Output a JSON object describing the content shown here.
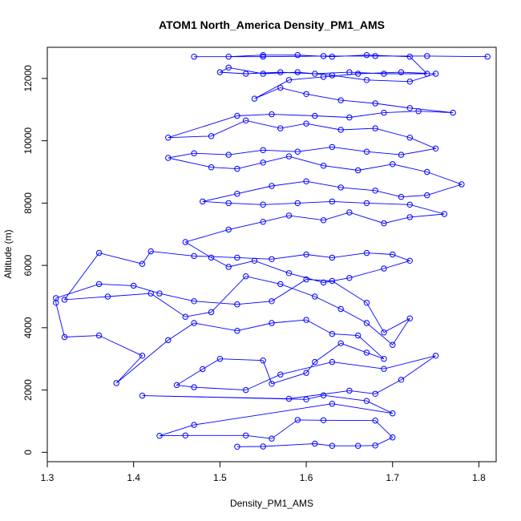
{
  "chart_data": {
    "type": "line",
    "title": "ATOM1 North_America Density_PM1_AMS",
    "xlabel": "Density_PM1_AMS",
    "ylabel": "Altitude (m)",
    "xlim": [
      1.3,
      1.82
    ],
    "ylim": [
      -300,
      13000
    ],
    "xticks": [
      "1.3",
      "1.4",
      "1.5",
      "1.6",
      "1.7",
      "1.8"
    ],
    "yticks": [
      "0",
      "2000",
      "4000",
      "6000",
      "8000",
      "10000",
      "12000"
    ],
    "markers": "open-circle",
    "colors": {
      "series": "#0000ff",
      "axis": "#000000"
    },
    "series": [
      {
        "values": [
          [
            1.52,
            180
          ],
          [
            1.55,
            190
          ],
          [
            1.61,
            280
          ],
          [
            1.63,
            210
          ],
          [
            1.66,
            210
          ],
          [
            1.68,
            220
          ],
          [
            1.7,
            480
          ],
          [
            1.68,
            1020
          ],
          [
            1.62,
            1030
          ],
          [
            1.59,
            1040
          ],
          [
            1.56,
            440
          ],
          [
            1.53,
            540
          ],
          [
            1.46,
            540
          ],
          [
            1.43,
            530
          ],
          [
            1.47,
            880
          ],
          [
            1.63,
            1560
          ],
          [
            1.7,
            1250
          ],
          [
            1.67,
            1650
          ],
          [
            1.62,
            1830
          ],
          [
            1.6,
            1700
          ],
          [
            1.41,
            1820
          ],
          [
            1.58,
            1720
          ],
          [
            1.65,
            1980
          ],
          [
            1.68,
            1880
          ],
          [
            1.71,
            2330
          ],
          [
            1.75,
            3100
          ],
          [
            1.69,
            2680
          ],
          [
            1.63,
            2900
          ],
          [
            1.57,
            2500
          ],
          [
            1.53,
            2000
          ],
          [
            1.47,
            2090
          ],
          [
            1.45,
            2160
          ],
          [
            1.48,
            2670
          ],
          [
            1.5,
            3000
          ],
          [
            1.55,
            2950
          ],
          [
            1.56,
            2200
          ],
          [
            1.6,
            2550
          ],
          [
            1.61,
            2900
          ],
          [
            1.64,
            3500
          ],
          [
            1.67,
            3200
          ],
          [
            1.69,
            3000
          ],
          [
            1.66,
            3750
          ],
          [
            1.63,
            3800
          ],
          [
            1.6,
            4250
          ],
          [
            1.56,
            4150
          ],
          [
            1.52,
            3900
          ],
          [
            1.47,
            4150
          ],
          [
            1.44,
            3600
          ],
          [
            1.38,
            2220
          ],
          [
            1.41,
            3100
          ],
          [
            1.36,
            3750
          ],
          [
            1.32,
            3700
          ],
          [
            1.31,
            4800
          ],
          [
            1.31,
            4950
          ],
          [
            1.36,
            5400
          ],
          [
            1.4,
            5350
          ],
          [
            1.43,
            5100
          ],
          [
            1.47,
            4850
          ],
          [
            1.52,
            4750
          ],
          [
            1.56,
            4850
          ],
          [
            1.6,
            5550
          ],
          [
            1.63,
            5500
          ],
          [
            1.67,
            4800
          ],
          [
            1.69,
            3850
          ],
          [
            1.72,
            4300
          ],
          [
            1.7,
            3450
          ],
          [
            1.67,
            4150
          ],
          [
            1.64,
            4600
          ],
          [
            1.61,
            5000
          ],
          [
            1.57,
            5400
          ],
          [
            1.53,
            5650
          ],
          [
            1.49,
            4500
          ],
          [
            1.46,
            4350
          ],
          [
            1.42,
            5100
          ],
          [
            1.37,
            5000
          ],
          [
            1.32,
            4900
          ],
          [
            1.36,
            6400
          ],
          [
            1.41,
            6050
          ],
          [
            1.42,
            6450
          ],
          [
            1.47,
            6300
          ],
          [
            1.52,
            6250
          ],
          [
            1.56,
            6200
          ],
          [
            1.6,
            6350
          ],
          [
            1.63,
            6250
          ],
          [
            1.67,
            6400
          ],
          [
            1.7,
            6350
          ],
          [
            1.72,
            6150
          ],
          [
            1.69,
            5900
          ],
          [
            1.65,
            5600
          ],
          [
            1.62,
            5450
          ],
          [
            1.58,
            5750
          ],
          [
            1.54,
            6150
          ],
          [
            1.51,
            5950
          ],
          [
            1.49,
            6250
          ],
          [
            1.46,
            6750
          ],
          [
            1.51,
            7150
          ],
          [
            1.55,
            7400
          ],
          [
            1.58,
            7600
          ],
          [
            1.62,
            7450
          ],
          [
            1.65,
            7700
          ],
          [
            1.69,
            7350
          ],
          [
            1.72,
            7550
          ],
          [
            1.76,
            7650
          ],
          [
            1.72,
            7950
          ],
          [
            1.67,
            8000
          ],
          [
            1.63,
            8050
          ],
          [
            1.59,
            8000
          ],
          [
            1.55,
            7950
          ],
          [
            1.51,
            8000
          ],
          [
            1.48,
            8050
          ],
          [
            1.52,
            8300
          ],
          [
            1.56,
            8550
          ],
          [
            1.6,
            8700
          ],
          [
            1.64,
            8500
          ],
          [
            1.68,
            8400
          ],
          [
            1.71,
            8200
          ],
          [
            1.74,
            8250
          ],
          [
            1.78,
            8600
          ],
          [
            1.74,
            9000
          ],
          [
            1.7,
            9250
          ],
          [
            1.66,
            9050
          ],
          [
            1.62,
            9200
          ],
          [
            1.58,
            9500
          ],
          [
            1.55,
            9300
          ],
          [
            1.52,
            9100
          ],
          [
            1.49,
            9150
          ],
          [
            1.44,
            9450
          ],
          [
            1.47,
            9600
          ],
          [
            1.51,
            9550
          ],
          [
            1.55,
            9700
          ],
          [
            1.59,
            9650
          ],
          [
            1.63,
            9800
          ],
          [
            1.67,
            9650
          ],
          [
            1.71,
            9550
          ],
          [
            1.75,
            9750
          ],
          [
            1.72,
            10100
          ],
          [
            1.68,
            10400
          ],
          [
            1.64,
            10350
          ],
          [
            1.6,
            10550
          ],
          [
            1.57,
            10400
          ],
          [
            1.53,
            10650
          ],
          [
            1.49,
            10150
          ],
          [
            1.44,
            10100
          ],
          [
            1.52,
            10800
          ],
          [
            1.56,
            10850
          ],
          [
            1.61,
            10800
          ],
          [
            1.65,
            10750
          ],
          [
            1.69,
            10900
          ],
          [
            1.73,
            10950
          ],
          [
            1.77,
            10900
          ],
          [
            1.72,
            11050
          ],
          [
            1.68,
            11200
          ],
          [
            1.64,
            11300
          ],
          [
            1.6,
            11500
          ],
          [
            1.57,
            11700
          ],
          [
            1.54,
            11350
          ],
          [
            1.58,
            11950
          ],
          [
            1.62,
            12050
          ],
          [
            1.66,
            12150
          ],
          [
            1.71,
            12200
          ],
          [
            1.75,
            12150
          ],
          [
            1.72,
            11900
          ],
          [
            1.67,
            11950
          ],
          [
            1.63,
            12100
          ],
          [
            1.59,
            12200
          ],
          [
            1.55,
            12150
          ],
          [
            1.51,
            12350
          ],
          [
            1.5,
            12200
          ],
          [
            1.53,
            12150
          ],
          [
            1.57,
            12200
          ],
          [
            1.61,
            12150
          ],
          [
            1.65,
            12200
          ],
          [
            1.69,
            12150
          ],
          [
            1.74,
            12150
          ],
          [
            1.72,
            12700
          ],
          [
            1.67,
            12750
          ],
          [
            1.63,
            12700
          ],
          [
            1.59,
            12750
          ],
          [
            1.55,
            12750
          ],
          [
            1.51,
            12700
          ],
          [
            1.47,
            12700
          ],
          [
            1.55,
            12700
          ],
          [
            1.62,
            12720
          ],
          [
            1.68,
            12720
          ],
          [
            1.74,
            12720
          ],
          [
            1.81,
            12700
          ]
        ]
      }
    ]
  }
}
